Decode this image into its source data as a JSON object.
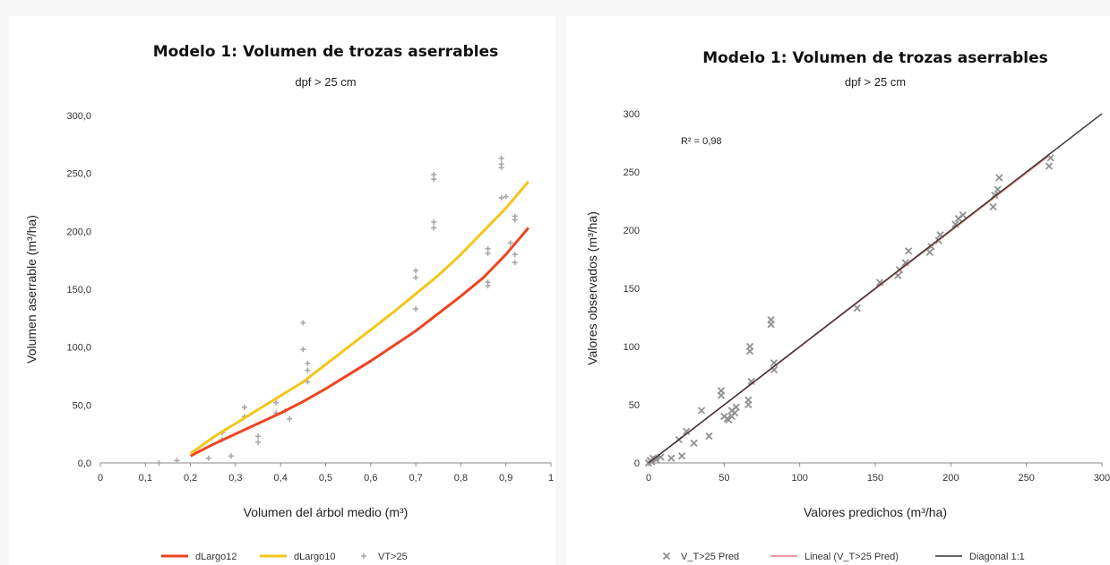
{
  "chart_data": [
    {
      "type": "scatter",
      "title": "Modelo 1: Volumen de trozas aserrables",
      "subtitle": "dpf > 25 cm",
      "xlabel": "Volumen del árbol medio (m³)",
      "ylabel": "Volumen aserrable (m³/ha)",
      "xlim": [
        0,
        1
      ],
      "ylim": [
        0,
        300
      ],
      "x_ticks": [
        {
          "v": 0,
          "label": "0"
        },
        {
          "v": 0.1,
          "label": "0,1"
        },
        {
          "v": 0.2,
          "label": "0,2"
        },
        {
          "v": 0.3,
          "label": "0,3"
        },
        {
          "v": 0.4,
          "label": "0,4"
        },
        {
          "v": 0.5,
          "label": "0,5"
        },
        {
          "v": 0.6,
          "label": "0,6"
        },
        {
          "v": 0.7,
          "label": "0,7"
        },
        {
          "v": 0.8,
          "label": "0,8"
        },
        {
          "v": 0.9,
          "label": "0,9"
        },
        {
          "v": 1,
          "label": "1"
        }
      ],
      "y_ticks": [
        {
          "v": 0,
          "label": "0,0"
        },
        {
          "v": 50,
          "label": "50,0"
        },
        {
          "v": 100,
          "label": "100,0"
        },
        {
          "v": 150,
          "label": "150,0"
        },
        {
          "v": 200,
          "label": "200,0"
        },
        {
          "v": 250,
          "label": "250,0"
        },
        {
          "v": 300,
          "label": "300,0"
        }
      ],
      "legend_position": "bottom",
      "series": [
        {
          "name": "dLargo12",
          "kind": "line",
          "color": "#ee4422",
          "x": [
            0.2,
            0.25,
            0.3,
            0.35,
            0.4,
            0.45,
            0.5,
            0.55,
            0.6,
            0.65,
            0.7,
            0.75,
            0.8,
            0.85,
            0.9,
            0.95
          ],
          "y": [
            6,
            16,
            25,
            34,
            43,
            53,
            64,
            76,
            88,
            101,
            114,
            129,
            144,
            160,
            180,
            203
          ]
        },
        {
          "name": "dLargo10",
          "kind": "line",
          "color": "#f5c518",
          "x": [
            0.2,
            0.25,
            0.3,
            0.35,
            0.4,
            0.45,
            0.5,
            0.55,
            0.6,
            0.65,
            0.7,
            0.75,
            0.8,
            0.85,
            0.9,
            0.95
          ],
          "y": [
            8,
            22,
            34,
            46,
            58,
            70,
            85,
            100,
            115,
            130,
            146,
            162,
            180,
            200,
            220,
            243
          ]
        },
        {
          "name": "VT>25",
          "kind": "scatter",
          "color": "#a8a8a8",
          "x": [
            0.13,
            0.17,
            0.24,
            0.27,
            0.27,
            0.29,
            0.32,
            0.32,
            0.35,
            0.35,
            0.39,
            0.39,
            0.41,
            0.42,
            0.45,
            0.45,
            0.46,
            0.46,
            0.46,
            0.7,
            0.7,
            0.7,
            0.74,
            0.74,
            0.74,
            0.74,
            0.86,
            0.86,
            0.86,
            0.86,
            0.89,
            0.89,
            0.89,
            0.89,
            0.9,
            0.91,
            0.92,
            0.92,
            0.92,
            0.92
          ],
          "y": [
            0,
            2,
            4,
            20,
            26,
            6,
            40,
            48,
            18,
            23,
            43,
            52,
            45,
            38,
            98,
            121,
            86,
            80,
            70,
            133,
            160,
            166,
            203,
            208,
            245,
            249,
            153,
            156,
            181,
            185,
            229,
            255,
            258,
            263,
            230,
            190,
            173,
            180,
            210,
            213
          ]
        }
      ]
    },
    {
      "type": "scatter",
      "title": "Modelo 1: Volumen de trozas aserrables",
      "subtitle": "dpf > 25 cm",
      "xlabel": "Valores predichos (m³/ha)",
      "ylabel": "Valores observados (m³/ha)",
      "xlim": [
        0,
        300
      ],
      "ylim": [
        0,
        300
      ],
      "x_ticks": [
        {
          "v": 0,
          "label": "0"
        },
        {
          "v": 50,
          "label": "50"
        },
        {
          "v": 100,
          "label": "100"
        },
        {
          "v": 150,
          "label": "150"
        },
        {
          "v": 200,
          "label": "200"
        },
        {
          "v": 250,
          "label": "250"
        },
        {
          "v": 300,
          "label": "300"
        }
      ],
      "y_ticks": [
        {
          "v": 0,
          "label": "0"
        },
        {
          "v": 50,
          "label": "50"
        },
        {
          "v": 100,
          "label": "100"
        },
        {
          "v": 150,
          "label": "150"
        },
        {
          "v": 200,
          "label": "200"
        },
        {
          "v": 250,
          "label": "250"
        },
        {
          "v": 300,
          "label": "300"
        }
      ],
      "annotation": "R² = 0,98",
      "legend_position": "bottom",
      "series": [
        {
          "name": "V_T>25 Pred",
          "kind": "scatter",
          "color": "#909090",
          "x": [
            0,
            1,
            2,
            3,
            5,
            8,
            15,
            20,
            22,
            25,
            30,
            35,
            40,
            48,
            48,
            50,
            52,
            53,
            55,
            55,
            57,
            58,
            66,
            66,
            67,
            67,
            68,
            81,
            81,
            83,
            83,
            138,
            153,
            165,
            166,
            170,
            172,
            186,
            187,
            192,
            193,
            203,
            205,
            208,
            228,
            229,
            231,
            232,
            265,
            266
          ],
          "y": [
            0,
            2,
            1,
            4,
            3,
            5,
            4,
            20,
            6,
            27,
            17,
            45,
            23,
            58,
            62,
            40,
            38,
            37,
            40,
            45,
            43,
            48,
            50,
            54,
            96,
            100,
            70,
            119,
            123,
            80,
            86,
            133,
            155,
            161,
            166,
            172,
            182,
            181,
            186,
            191,
            196,
            205,
            210,
            213,
            220,
            230,
            235,
            245,
            255,
            262
          ]
        },
        {
          "name": "Lineal (V_T>25 Pred)",
          "kind": "line",
          "color": "#e87a7a",
          "x": [
            0,
            265
          ],
          "y": [
            0,
            264
          ]
        },
        {
          "name": "Diagonal 1:1",
          "kind": "line",
          "color": "#333333",
          "x": [
            0,
            300
          ],
          "y": [
            0,
            300
          ]
        }
      ]
    }
  ]
}
